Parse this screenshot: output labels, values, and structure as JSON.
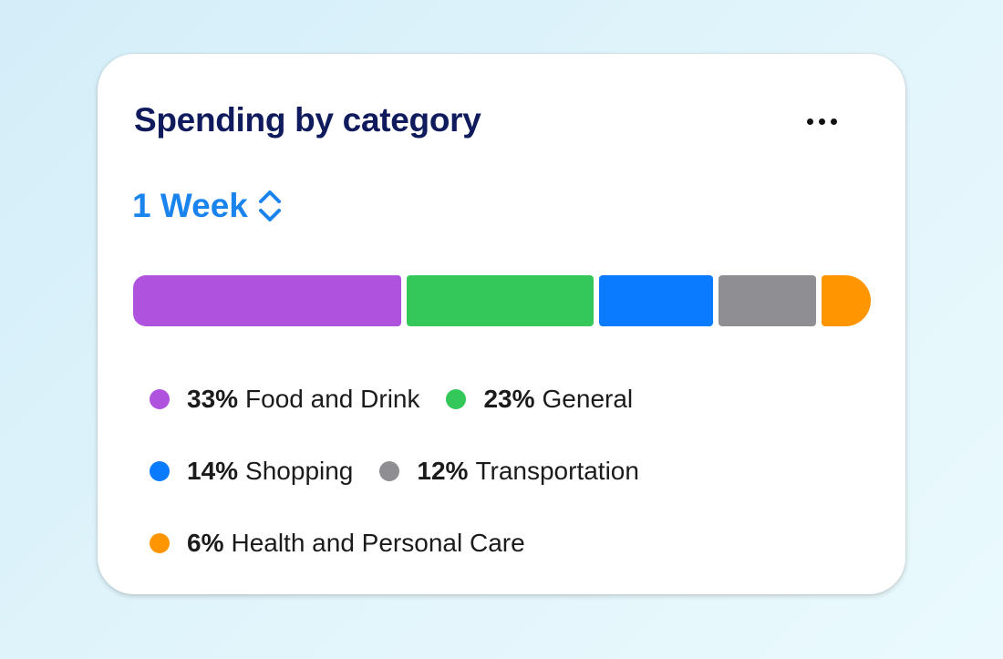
{
  "card": {
    "title": "Spending by category",
    "more_icon": "more-horizontal-icon"
  },
  "period": {
    "label": "1 Week",
    "icon": "chevron-up-down-icon"
  },
  "colors": {
    "accent": "#1a84ee",
    "title": "#0f1b5c"
  },
  "categories": [
    {
      "name": "Food and Drink",
      "percent_label": "33%",
      "share": 33,
      "color": "#af52de"
    },
    {
      "name": "General",
      "percent_label": "23%",
      "share": 23,
      "color": "#34c759"
    },
    {
      "name": "Shopping",
      "percent_label": "14%",
      "share": 14,
      "color": "#0a7aff"
    },
    {
      "name": "Transportation",
      "percent_label": "12%",
      "share": 12,
      "color": "#8e8e93"
    },
    {
      "name": "Health and Personal Care",
      "percent_label": "6%",
      "share": 6,
      "color": "#ff9500"
    }
  ]
}
